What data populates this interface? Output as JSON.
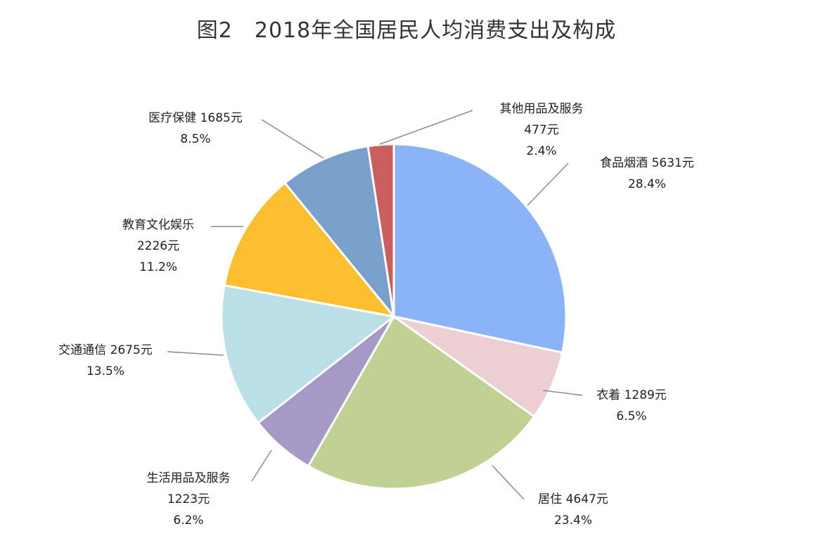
{
  "chart_data": {
    "type": "pie",
    "title": "图2　2018年全国居民人均消费支出及构成",
    "start": "top",
    "direction": "clockwise",
    "slices": [
      {
        "name": "食品烟酒",
        "value": 5631,
        "unit": "元",
        "percent": "28.4%",
        "color": "#8AB4F5"
      },
      {
        "name": "衣着",
        "value": 1289,
        "unit": "元",
        "percent": "6.5%",
        "color": "#EBCFD3"
      },
      {
        "name": "居住",
        "value": 4647,
        "unit": "元",
        "percent": "23.4%",
        "color": "#BFD193"
      },
      {
        "name": "生活用品及服务",
        "value": 1223,
        "unit": "元",
        "percent": "6.2%",
        "color": "#A898C5"
      },
      {
        "name": "交通通信",
        "value": 2675,
        "unit": "元",
        "percent": "13.5%",
        "color": "#BADFE7"
      },
      {
        "name": "教育文化娱乐",
        "value": 2226,
        "unit": "元",
        "percent": "11.2%",
        "color": "#FBBE2E"
      },
      {
        "name": "医疗保健",
        "value": 1685,
        "unit": "元",
        "percent": "8.5%",
        "color": "#7A9FCB"
      },
      {
        "name": "其他用品及服务",
        "value": 477,
        "unit": "元",
        "percent": "2.4%",
        "color": "#C85F5E"
      }
    ]
  }
}
